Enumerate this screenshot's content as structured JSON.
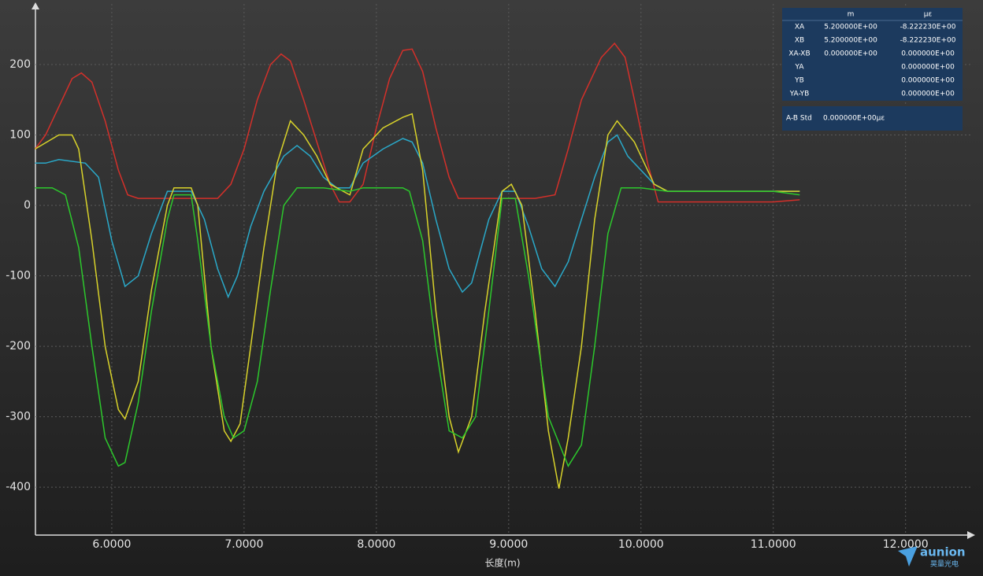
{
  "chart_data": {
    "type": "line",
    "x_label": "长度(m)",
    "xlim": [
      5.423,
      12.49
    ],
    "ylim": [
      -468,
      286
    ],
    "xticks": [
      {
        "value": 6,
        "label": "6.0000"
      },
      {
        "value": 7,
        "label": "7.0000"
      },
      {
        "value": 8,
        "label": "8.0000"
      },
      {
        "value": 9,
        "label": "9.0000"
      },
      {
        "value": 10,
        "label": "10.0000"
      },
      {
        "value": 11,
        "label": "11.0000"
      },
      {
        "value": 12,
        "label": "12.0000"
      }
    ],
    "yticks": [
      -400,
      -300,
      -200,
      -100,
      0,
      100,
      200
    ],
    "grid": true,
    "series": [
      {
        "color": "#d4302a",
        "x": [
          5.42,
          5.5,
          5.6,
          5.7,
          5.77,
          5.85,
          5.95,
          6.05,
          6.12,
          6.2,
          6.4,
          6.6,
          6.8,
          6.9,
          7.0,
          7.1,
          7.2,
          7.28,
          7.35,
          7.45,
          7.55,
          7.65,
          7.72,
          7.8,
          7.9,
          8.0,
          8.1,
          8.2,
          8.27,
          8.35,
          8.45,
          8.55,
          8.62,
          8.8,
          9.0,
          9.2,
          9.35,
          9.45,
          9.55,
          9.7,
          9.8,
          9.88,
          9.95,
          10.05,
          10.13,
          10.2,
          10.5,
          10.8,
          11.0,
          11.2
        ],
        "values": [
          80,
          100,
          140,
          180,
          188,
          175,
          120,
          50,
          15,
          10,
          10,
          10,
          10,
          30,
          80,
          150,
          200,
          215,
          205,
          150,
          90,
          30,
          5,
          5,
          30,
          110,
          180,
          220,
          222,
          190,
          110,
          40,
          10,
          10,
          10,
          10,
          15,
          80,
          150,
          210,
          230,
          210,
          150,
          60,
          5,
          5,
          5,
          5,
          5,
          8
        ]
      },
      {
        "color": "#2aa8c8",
        "x": [
          5.42,
          5.5,
          5.6,
          5.8,
          5.9,
          6.0,
          6.1,
          6.2,
          6.3,
          6.42,
          6.5,
          6.6,
          6.7,
          6.8,
          6.88,
          6.95,
          7.05,
          7.15,
          7.3,
          7.4,
          7.5,
          7.6,
          7.7,
          7.8,
          7.9,
          8.05,
          8.2,
          8.27,
          8.35,
          8.45,
          8.55,
          8.65,
          8.72,
          8.85,
          8.95,
          9.05,
          9.15,
          9.25,
          9.35,
          9.45,
          9.55,
          9.65,
          9.75,
          9.82,
          9.9,
          10.0,
          10.1,
          10.2,
          10.6,
          11.0,
          11.2
        ],
        "values": [
          60,
          60,
          65,
          60,
          40,
          -50,
          -115,
          -100,
          -40,
          20,
          20,
          20,
          -20,
          -90,
          -130,
          -100,
          -30,
          20,
          70,
          85,
          70,
          40,
          25,
          25,
          60,
          80,
          95,
          90,
          60,
          -20,
          -90,
          -123,
          -110,
          -20,
          20,
          20,
          -30,
          -90,
          -115,
          -80,
          -20,
          40,
          90,
          100,
          70,
          50,
          30,
          20,
          20,
          20,
          20
        ]
      },
      {
        "color": "#d8d22a",
        "x": [
          5.42,
          5.6,
          5.7,
          5.75,
          5.85,
          5.95,
          6.05,
          6.1,
          6.2,
          6.3,
          6.42,
          6.47,
          6.6,
          6.65,
          6.75,
          6.85,
          6.9,
          6.97,
          7.05,
          7.15,
          7.25,
          7.35,
          7.45,
          7.55,
          7.65,
          7.8,
          7.9,
          8.05,
          8.2,
          8.27,
          8.35,
          8.45,
          8.55,
          8.62,
          8.72,
          8.82,
          8.95,
          9.02,
          9.1,
          9.2,
          9.3,
          9.38,
          9.45,
          9.55,
          9.65,
          9.75,
          9.82,
          9.95,
          10.1,
          10.2,
          10.6,
          11.0,
          11.2
        ],
        "values": [
          80,
          100,
          100,
          80,
          -50,
          -200,
          -290,
          -303,
          -250,
          -120,
          0,
          25,
          25,
          0,
          -200,
          -320,
          -335,
          -310,
          -200,
          -60,
          60,
          120,
          100,
          70,
          30,
          15,
          80,
          110,
          125,
          130,
          50,
          -150,
          -300,
          -350,
          -300,
          -150,
          20,
          30,
          0,
          -150,
          -320,
          -402,
          -330,
          -200,
          -20,
          100,
          120,
          90,
          30,
          20,
          20,
          20,
          20
        ]
      },
      {
        "color": "#2cc82c",
        "x": [
          5.42,
          5.55,
          5.65,
          5.75,
          5.85,
          5.95,
          6.05,
          6.1,
          6.2,
          6.3,
          6.42,
          6.47,
          6.6,
          6.65,
          6.75,
          6.85,
          6.92,
          7.0,
          7.1,
          7.2,
          7.3,
          7.4,
          7.6,
          7.8,
          7.9,
          8.2,
          8.25,
          8.35,
          8.45,
          8.55,
          8.65,
          8.75,
          8.85,
          8.95,
          9.05,
          9.15,
          9.3,
          9.45,
          9.55,
          9.65,
          9.75,
          9.85,
          10.0,
          10.2,
          10.6,
          11.0,
          11.2
        ],
        "values": [
          25,
          25,
          15,
          -60,
          -200,
          -330,
          -370,
          -365,
          -280,
          -150,
          -20,
          15,
          15,
          -50,
          -200,
          -300,
          -330,
          -320,
          -250,
          -120,
          0,
          25,
          25,
          20,
          25,
          25,
          20,
          -50,
          -200,
          -320,
          -330,
          -300,
          -150,
          10,
          10,
          -100,
          -300,
          -370,
          -340,
          -200,
          -40,
          25,
          25,
          20,
          20,
          20,
          15
        ]
      }
    ]
  },
  "info_panel": {
    "header": [
      "m",
      "με"
    ],
    "rows": [
      [
        "XA",
        "5.200000E+00",
        "-8.222230E+00"
      ],
      [
        "XB",
        "5.200000E+00",
        "-8.222230E+00"
      ],
      [
        "XA-XB",
        "0.000000E+00",
        "0.000000E+00"
      ],
      [
        "YA",
        null,
        "0.000000E+00"
      ],
      [
        "YB",
        null,
        "0.000000E+00"
      ],
      [
        "YA-YB",
        null,
        "0.000000E+00"
      ]
    ],
    "std_label": "A-B Std",
    "std_value": "0.000000E+00με"
  },
  "logo": {
    "name": "aunion",
    "subtitle": "昊量光电"
  }
}
